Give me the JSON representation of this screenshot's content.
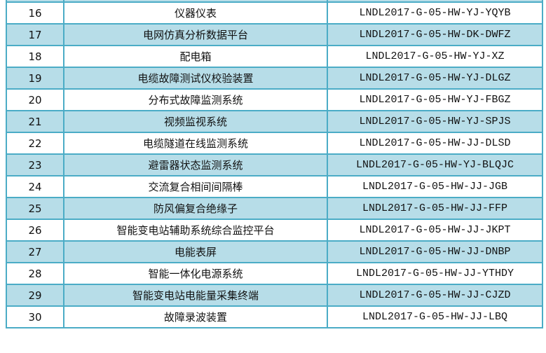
{
  "table": {
    "rows": [
      {
        "no": "",
        "name": "",
        "code": ""
      },
      {
        "no": "16",
        "name": "仪器仪表",
        "code": "LNDL2017-G-05-HW-YJ-YQYB"
      },
      {
        "no": "17",
        "name": "电网仿真分析数据平台",
        "code": "LNDL2017-G-05-HW-DK-DWFZ"
      },
      {
        "no": "18",
        "name": "配电箱",
        "code": "LNDL2017-G-05-HW-YJ-XZ"
      },
      {
        "no": "19",
        "name": "电缆故障测试仪校验装置",
        "code": "LNDL2017-G-05-HW-YJ-DLGZ"
      },
      {
        "no": "20",
        "name": "分布式故障监测系统",
        "code": "LNDL2017-G-05-HW-YJ-FBGZ"
      },
      {
        "no": "21",
        "name": "视频监视系统",
        "code": "LNDL2017-G-05-HW-YJ-SPJS"
      },
      {
        "no": "22",
        "name": "电缆隧道在线监测系统",
        "code": "LNDL2017-G-05-HW-JJ-DLSD"
      },
      {
        "no": "23",
        "name": "避雷器状态监测系统",
        "code": "LNDL2017-G-05-HW-YJ-BLQJC"
      },
      {
        "no": "24",
        "name": "交流复合相间间隔棒",
        "code": "LNDL2017-G-05-HW-JJ-JGB"
      },
      {
        "no": "25",
        "name": "防风偏复合绝缘子",
        "code": "LNDL2017-G-05-HW-JJ-FFP"
      },
      {
        "no": "26",
        "name": "智能变电站辅助系统综合监控平台",
        "code": "LNDL2017-G-05-HW-JJ-JKPT"
      },
      {
        "no": "27",
        "name": "电能表屏",
        "code": "LNDL2017-G-05-HW-JJ-DNBP"
      },
      {
        "no": "28",
        "name": "智能一体化电源系统",
        "code": "LNDL2017-G-05-HW-JJ-YTHDY"
      },
      {
        "no": "29",
        "name": "智能变电站电能量采集终端",
        "code": "LNDL2017-G-05-HW-JJ-CJZD"
      },
      {
        "no": "30",
        "name": "故障录波装置",
        "code": "LNDL2017-G-05-HW-JJ-LBQ"
      }
    ]
  },
  "colors": {
    "stripe": "#b7dde8",
    "border": "#4bacc6"
  }
}
